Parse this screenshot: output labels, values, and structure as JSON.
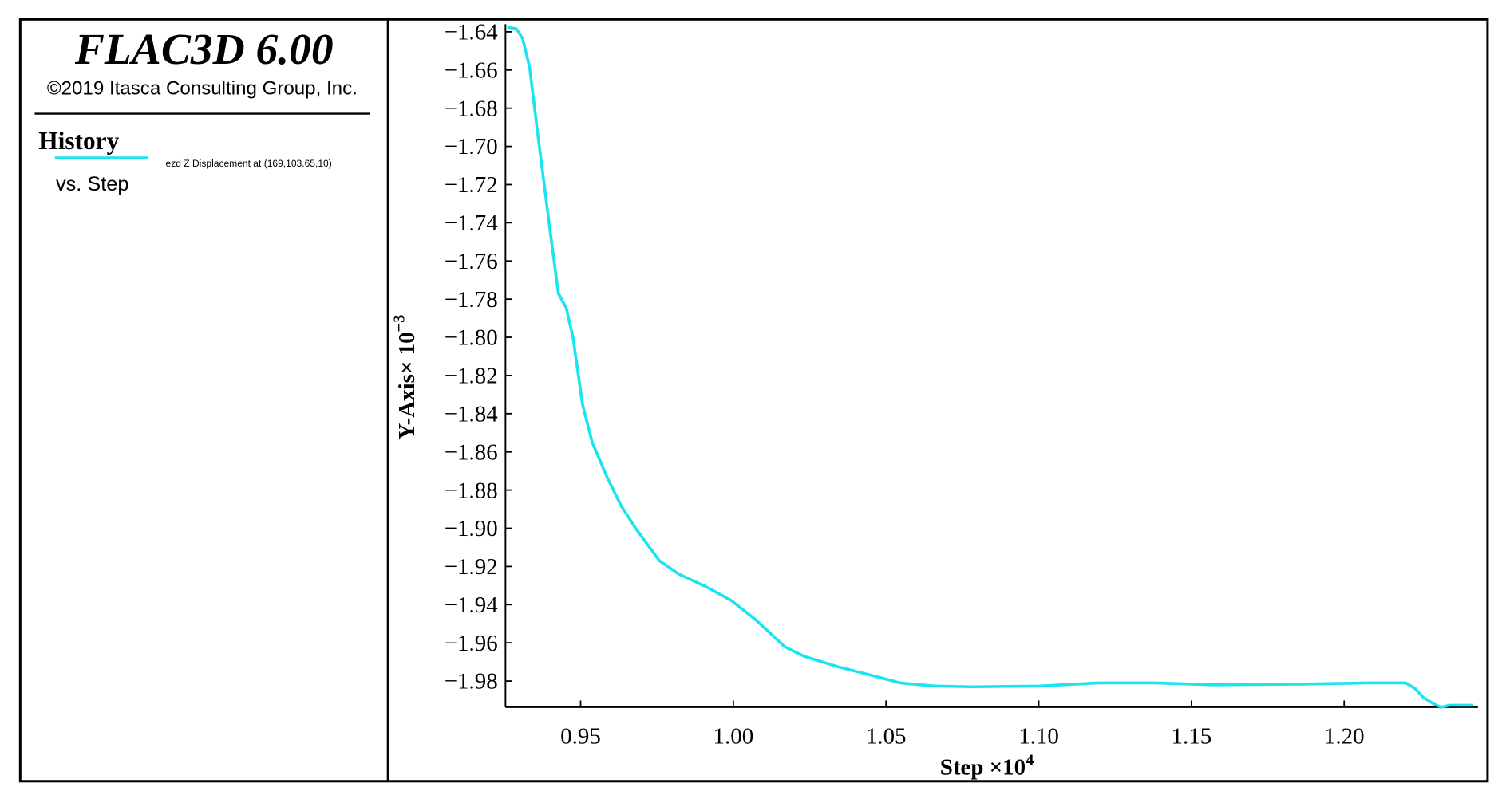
{
  "chart_data": {
    "type": "line",
    "title": "FLAC3D 6.00",
    "subtitle": "©2019 Itasca Consulting Group, Inc.",
    "plot_kind": "History",
    "x_description": "vs. Step",
    "y_label": "Y-Axis× 10",
    "y_label_exponent": "−3",
    "x_label": "Step ×10",
    "x_label_exponent": "4",
    "xlim": [
      0.9254,
      1.2438
    ],
    "ylim": [
      -1.9937,
      -1.636
    ],
    "xticks": [
      0.95,
      {
        "value": 1.0,
        "label": "1.00"
      },
      1.05,
      {
        "value": 1.1,
        "label": "1.10"
      },
      1.15,
      {
        "value": 1.2,
        "label": "1.20"
      }
    ],
    "yticks": [
      {
        "value": -1.64,
        "label": "−1.64"
      },
      {
        "value": -1.66,
        "label": "−1.66"
      },
      {
        "value": -1.68,
        "label": "−1.68"
      },
      {
        "value": -1.7,
        "label": "−1.70"
      },
      {
        "value": -1.72,
        "label": "−1.72"
      },
      {
        "value": -1.74,
        "label": "−1.74"
      },
      {
        "value": -1.76,
        "label": "−1.76"
      },
      {
        "value": -1.78,
        "label": "−1.78"
      },
      {
        "value": -1.8,
        "label": "−1.80"
      },
      {
        "value": -1.82,
        "label": "−1.82"
      },
      {
        "value": -1.84,
        "label": "−1.84"
      },
      {
        "value": -1.86,
        "label": "−1.86"
      },
      {
        "value": -1.88,
        "label": "−1.88"
      },
      {
        "value": -1.9,
        "label": "−1.90"
      },
      {
        "value": -1.92,
        "label": "−1.92"
      },
      {
        "value": -1.94,
        "label": "−1.94"
      },
      {
        "value": -1.96,
        "label": "−1.96"
      },
      {
        "value": -1.98,
        "label": "−1.98"
      }
    ],
    "x": [
      0.926,
      0.929,
      0.931,
      0.9333,
      0.9364,
      0.9396,
      0.9427,
      0.9453,
      0.9475,
      0.9506,
      0.9538,
      0.9585,
      0.9632,
      0.968,
      0.9758,
      0.9822,
      0.9916,
      0.9995,
      1.0074,
      1.0168,
      1.0231,
      1.0342,
      1.0452,
      1.0547,
      1.0657,
      1.0783,
      1.1004,
      1.1193,
      1.1382,
      1.1571,
      1.1855,
      1.2076,
      1.2202,
      1.2233,
      1.2259,
      1.2296,
      1.2318,
      1.2344,
      1.2423
    ],
    "series": [
      {
        "name": "ezd Z Displacement at (169,103.65,10)",
        "color": "#1ae4f0",
        "values": [
          -1.6375,
          -1.6385,
          -1.6435,
          -1.6586,
          -1.699,
          -1.739,
          -1.777,
          -1.7846,
          -1.8,
          -1.835,
          -1.855,
          -1.8727,
          -1.888,
          -1.9,
          -1.917,
          -1.924,
          -1.931,
          -1.938,
          -1.948,
          -1.962,
          -1.967,
          -1.9725,
          -1.977,
          -1.981,
          -1.9826,
          -1.983,
          -1.9826,
          -1.981,
          -1.981,
          -1.982,
          -1.9816,
          -1.981,
          -1.981,
          -1.984,
          -1.9886,
          -1.9922,
          -1.9937,
          -1.9927,
          -1.9927
        ]
      }
    ]
  }
}
